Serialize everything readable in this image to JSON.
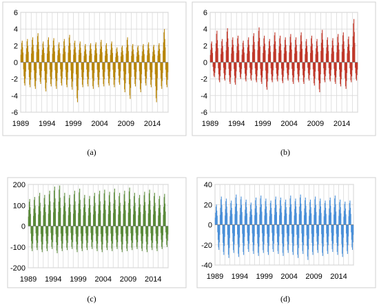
{
  "chart_data": [
    {
      "type": "bar",
      "label": "(a)",
      "color": "#b8860b",
      "frame": "#cfcfcf",
      "ylim": [
        -6,
        6
      ],
      "y_ticks": [
        -6,
        -4,
        -2,
        0,
        2,
        4,
        6
      ],
      "x_ticks": [
        "1989",
        "1994",
        "1999",
        "2004",
        "2009",
        "2014"
      ],
      "x_range": [
        1989,
        2017
      ],
      "series": [
        {
          "years": [
            1989,
            1990,
            1991,
            1992,
            1993,
            1994,
            1995,
            1996,
            1997,
            1998,
            1999,
            2000,
            2001,
            2002,
            2003,
            2004,
            2005,
            2006,
            2007,
            2008,
            2009,
            2010,
            2011,
            2012,
            2013,
            2014,
            2015,
            2016
          ],
          "peak": [
            2.6,
            2.8,
            3.0,
            3.5,
            2.5,
            3.0,
            2.9,
            2.4,
            2.8,
            3.3,
            2.6,
            2.5,
            2.2,
            2.3,
            2.4,
            2.7,
            2.3,
            2.5,
            1.8,
            2.0,
            3.0,
            2.2,
            2.0,
            2.2,
            2.4,
            2.1,
            2.3,
            4.0
          ],
          "trough": [
            -2.8,
            -3.0,
            -3.2,
            -2.6,
            -3.5,
            -2.9,
            -3.2,
            -2.8,
            -3.0,
            -3.3,
            -4.8,
            -3.0,
            -2.9,
            -3.2,
            -3.0,
            -2.9,
            -2.8,
            -3.0,
            -2.7,
            -3.6,
            -4.4,
            -2.9,
            -3.6,
            -2.8,
            -3.0,
            -4.8,
            -3.2,
            -3.0
          ]
        }
      ]
    },
    {
      "type": "bar",
      "label": "(b)",
      "color": "#c0392b",
      "frame": "#cfcfcf",
      "ylim": [
        -6,
        6
      ],
      "y_ticks": [
        -6,
        -4,
        -2,
        0,
        2,
        4,
        6
      ],
      "x_ticks": [
        "1989",
        "1994",
        "1999",
        "2004",
        "2009",
        "2014"
      ],
      "x_range": [
        1989,
        2017
      ],
      "series": [
        {
          "years": [
            1989,
            1990,
            1991,
            1992,
            1993,
            1994,
            1995,
            1996,
            1997,
            1998,
            1999,
            2000,
            2001,
            2002,
            2003,
            2004,
            2005,
            2006,
            2007,
            2008,
            2009,
            2010,
            2011,
            2012,
            2013,
            2014,
            2015,
            2016
          ],
          "peak": [
            2.5,
            3.8,
            2.8,
            4.1,
            3.0,
            3.2,
            2.6,
            3.0,
            3.5,
            4.2,
            3.2,
            2.8,
            3.6,
            3.2,
            3.0,
            3.4,
            3.0,
            3.6,
            2.8,
            3.2,
            2.8,
            3.9,
            3.0,
            2.9,
            3.4,
            3.6,
            3.1,
            5.2
          ],
          "trough": [
            -1.8,
            -2.4,
            -2.2,
            -2.6,
            -2.7,
            -2.0,
            -2.3,
            -2.2,
            -2.4,
            -2.6,
            -3.3,
            -2.4,
            -2.3,
            -2.5,
            -2.2,
            -2.6,
            -2.4,
            -2.6,
            -2.2,
            -2.8,
            -3.6,
            -2.4,
            -2.3,
            -2.6,
            -2.9,
            -3.2,
            -2.4,
            -2.2
          ]
        }
      ]
    },
    {
      "type": "bar",
      "label": "(c)",
      "color": "#5a8a3a",
      "frame": "#cfcfcf",
      "ylim": [
        -200,
        200
      ],
      "y_ticks": [
        -200,
        -100,
        0,
        100,
        200
      ],
      "x_ticks": [
        "1989",
        "1994",
        "1999",
        "2004",
        "2009",
        "2014"
      ],
      "x_range": [
        1989,
        2017
      ],
      "series": [
        {
          "years": [
            1989,
            1990,
            1991,
            1992,
            1993,
            1994,
            1995,
            1996,
            1997,
            1998,
            1999,
            2000,
            2001,
            2002,
            2003,
            2004,
            2005,
            2006,
            2007,
            2008,
            2009,
            2010,
            2011,
            2012,
            2013,
            2014,
            2015,
            2016
          ],
          "peak": [
            130,
            140,
            160,
            150,
            170,
            190,
            195,
            160,
            150,
            170,
            180,
            150,
            145,
            160,
            170,
            175,
            165,
            180,
            160,
            170,
            185,
            160,
            150,
            165,
            175,
            160,
            145,
            155
          ],
          "trough": [
            -120,
            -115,
            -125,
            -120,
            -110,
            -130,
            -120,
            -115,
            -110,
            -125,
            -120,
            -115,
            -110,
            -120,
            -125,
            -115,
            -120,
            -110,
            -125,
            -120,
            -115,
            -110,
            -120,
            -125,
            -115,
            -120,
            -110,
            -100
          ]
        }
      ]
    },
    {
      "type": "bar",
      "label": "(d)",
      "color": "#4a90d9",
      "frame": "#cfcfcf",
      "ylim": [
        -40,
        40
      ],
      "y_ticks": [
        -40,
        -20,
        0,
        20,
        40
      ],
      "x_ticks": [
        "1989",
        "1994",
        "1999",
        "2004",
        "2009",
        "2014"
      ],
      "x_range": [
        1989,
        2017
      ],
      "series": [
        {
          "years": [
            1989,
            1990,
            1991,
            1992,
            1993,
            1994,
            1995,
            1996,
            1997,
            1998,
            1999,
            2000,
            2001,
            2002,
            2003,
            2004,
            2005,
            2006,
            2007,
            2008,
            2009,
            2010,
            2011,
            2012,
            2013,
            2014,
            2015,
            2016
          ],
          "peak": [
            20,
            28,
            26,
            24,
            30,
            28,
            25,
            22,
            27,
            29,
            26,
            24,
            28,
            27,
            25,
            29,
            26,
            30,
            27,
            25,
            28,
            26,
            24,
            27,
            29,
            25,
            23,
            24
          ],
          "trough": [
            -25,
            -30,
            -33,
            -28,
            -32,
            -30,
            -27,
            -29,
            -31,
            -28,
            -30,
            -27,
            -29,
            -31,
            -28,
            -30,
            -33,
            -29,
            -35,
            -30,
            -28,
            -31,
            -29,
            -27,
            -30,
            -32,
            -29,
            -25
          ]
        }
      ]
    }
  ]
}
